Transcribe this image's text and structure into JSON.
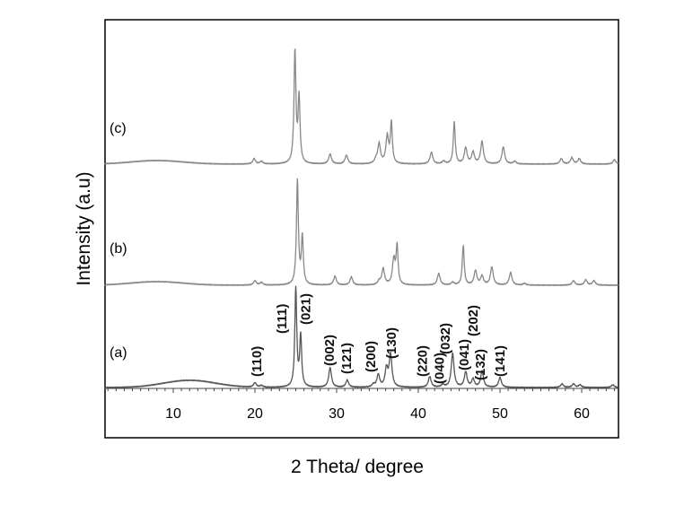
{
  "chart_data": {
    "type": "line",
    "xlabel": "2 Theta/ degree",
    "ylabel": "Intensity (a.u)",
    "xlim": [
      1.6,
      64.5
    ],
    "xticks": [
      10,
      20,
      30,
      40,
      50,
      60
    ],
    "grid": false,
    "series": [
      {
        "name": "(a)",
        "color": "#555555",
        "hump": {
          "center": 12,
          "height": 8
        },
        "peaks": [
          [
            20.0,
            5
          ],
          [
            20.8,
            2
          ],
          [
            25.0,
            110
          ],
          [
            25.6,
            57
          ],
          [
            29.2,
            22
          ],
          [
            31.3,
            8
          ],
          [
            34.5,
            3
          ],
          [
            35.1,
            14
          ],
          [
            36.1,
            20
          ],
          [
            36.6,
            36
          ],
          [
            41.4,
            12
          ],
          [
            43.0,
            3
          ],
          [
            44.2,
            38
          ],
          [
            45.8,
            17
          ],
          [
            46.7,
            9
          ],
          [
            47.8,
            18
          ],
          [
            50.0,
            11
          ],
          [
            57.6,
            4
          ],
          [
            59.0,
            4
          ],
          [
            59.8,
            3
          ],
          [
            63.8,
            3
          ]
        ]
      },
      {
        "name": "(b)",
        "color": "#888888",
        "hump": {
          "center": 8,
          "height": 4
        },
        "peaks": [
          [
            20.0,
            5
          ],
          [
            20.8,
            3
          ],
          [
            25.2,
            116
          ],
          [
            25.8,
            53
          ],
          [
            29.8,
            10
          ],
          [
            31.8,
            9
          ],
          [
            35.2,
            4
          ],
          [
            35.7,
            18
          ],
          [
            37.0,
            28
          ],
          [
            37.4,
            42
          ],
          [
            42.5,
            13
          ],
          [
            44.2,
            3
          ],
          [
            45.5,
            44
          ],
          [
            47.0,
            16
          ],
          [
            47.8,
            10
          ],
          [
            49.0,
            20
          ],
          [
            51.3,
            14
          ],
          [
            53.0,
            2
          ],
          [
            59.0,
            5
          ],
          [
            60.5,
            6
          ],
          [
            61.5,
            5
          ]
        ]
      },
      {
        "name": "(c)",
        "color": "#888888",
        "hump": {
          "center": 8,
          "height": 4
        },
        "peaks": [
          [
            19.9,
            6
          ],
          [
            20.8,
            3
          ],
          [
            24.9,
            125
          ],
          [
            25.4,
            73
          ],
          [
            29.2,
            11
          ],
          [
            31.2,
            10
          ],
          [
            34.8,
            4
          ],
          [
            35.2,
            22
          ],
          [
            36.2,
            30
          ],
          [
            36.7,
            45
          ],
          [
            41.6,
            13
          ],
          [
            43.1,
            3
          ],
          [
            44.4,
            47
          ],
          [
            45.8,
            18
          ],
          [
            46.7,
            13
          ],
          [
            47.8,
            25
          ],
          [
            50.4,
            19
          ],
          [
            51.8,
            3
          ],
          [
            57.5,
            6
          ],
          [
            58.8,
            7
          ],
          [
            59.7,
            6
          ],
          [
            64.0,
            5
          ]
        ]
      }
    ],
    "annotations": [
      {
        "text": "(110)",
        "x": 20.2,
        "y": 12
      },
      {
        "text": "(111)",
        "x": 23.3,
        "y": 60
      },
      {
        "text": "(021)",
        "x": 26.2,
        "y": 70
      },
      {
        "text": "(002)",
        "x": 29.1,
        "y": 24
      },
      {
        "text": "(121)",
        "x": 31.2,
        "y": 15
      },
      {
        "text": "(200)",
        "x": 34.2,
        "y": 17
      },
      {
        "text": "(130)",
        "x": 36.7,
        "y": 32
      },
      {
        "text": "(220)",
        "x": 40.5,
        "y": 12
      },
      {
        "text": "(040)",
        "x": 42.6,
        "y": 4
      },
      {
        "text": "(032)",
        "x": 43.3,
        "y": 37
      },
      {
        "text": "(041)",
        "x": 45.6,
        "y": 19
      },
      {
        "text": "(202)",
        "x": 46.7,
        "y": 57
      },
      {
        "text": "(132)",
        "x": 47.6,
        "y": 8
      },
      {
        "text": "(141)",
        "x": 50.0,
        "y": 12
      }
    ]
  }
}
